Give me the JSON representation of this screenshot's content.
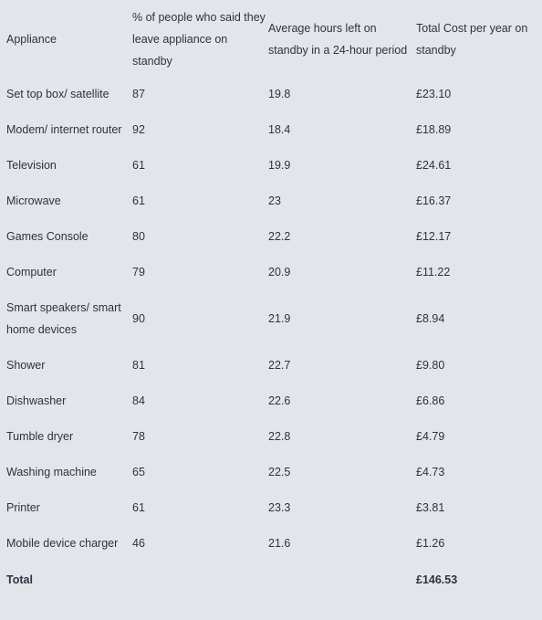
{
  "table": {
    "headers": [
      "Appliance",
      "% of people who said they leave appliance on standby",
      "Average hours left on standby in a 24-hour period",
      "Total Cost per year on standby"
    ],
    "rows": [
      {
        "appliance": "Set top box/ satellite",
        "percent": "87",
        "hours": "19.8",
        "cost": "£23.10"
      },
      {
        "appliance": "Modem/ internet router",
        "percent": "92",
        "hours": "18.4",
        "cost": "£18.89"
      },
      {
        "appliance": "Television",
        "percent": "61",
        "hours": "19.9",
        "cost": "£24.61"
      },
      {
        "appliance": "Microwave",
        "percent": "61",
        "hours": "23",
        "cost": "£16.37"
      },
      {
        "appliance": "Games Console",
        "percent": "80",
        "hours": "22.2",
        "cost": "£12.17"
      },
      {
        "appliance": "Computer",
        "percent": "79",
        "hours": "20.9",
        "cost": "£11.22"
      },
      {
        "appliance": "Smart speakers/ smart home devices",
        "percent": "90",
        "hours": "21.9",
        "cost": "£8.94"
      },
      {
        "appliance": "Shower",
        "percent": "81",
        "hours": "22.7",
        "cost": "£9.80"
      },
      {
        "appliance": "Dishwasher",
        "percent": "84",
        "hours": "22.6",
        "cost": "£6.86"
      },
      {
        "appliance": "Tumble dryer",
        "percent": "78",
        "hours": "22.8",
        "cost": "£4.79"
      },
      {
        "appliance": "Washing machine",
        "percent": "65",
        "hours": "22.5",
        "cost": "£4.73"
      },
      {
        "appliance": "Printer",
        "percent": "61",
        "hours": "23.3",
        "cost": "£3.81"
      },
      {
        "appliance": "Mobile device charger",
        "percent": "46",
        "hours": "21.6",
        "cost": "£1.26"
      }
    ],
    "total": {
      "label": "Total",
      "cost": "£146.53"
    }
  }
}
